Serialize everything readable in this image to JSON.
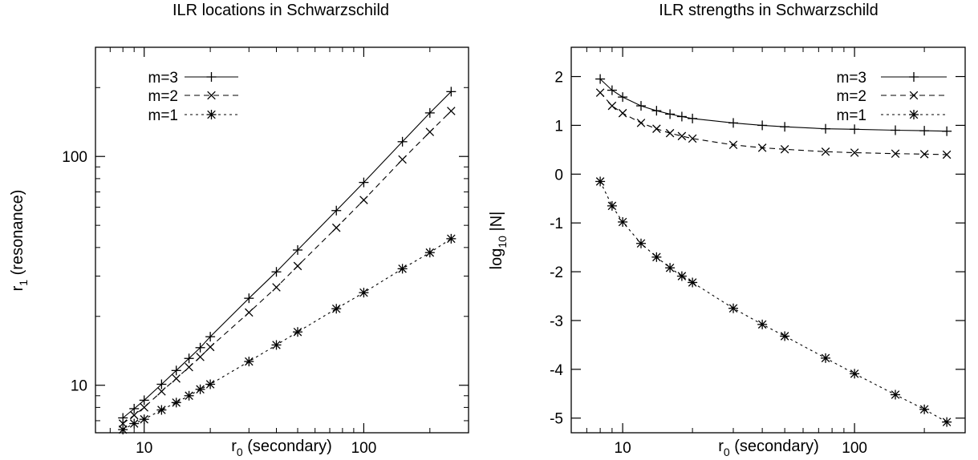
{
  "chart_data": [
    {
      "type": "line",
      "title": "ILR locations in Schwarzschild",
      "xlabel": {
        "main": "r",
        "sub": "0",
        "rest": " (secondary)"
      },
      "ylabel": {
        "main": "r",
        "sub": "1",
        "rest": " (resonance)"
      },
      "xscale": "log",
      "yscale": "log",
      "xlim": [
        6,
        300
      ],
      "ylim": [
        6.2,
        300
      ],
      "xticks": [
        {
          "v": 10,
          "label": "10"
        },
        {
          "v": 100,
          "label": "100"
        }
      ],
      "yticks": [
        {
          "v": 10,
          "label": "10"
        },
        {
          "v": 100,
          "label": "100"
        }
      ],
      "legend_position": "top-left",
      "series": [
        {
          "name": "m=3",
          "dash": "solid",
          "marker": "plus",
          "x": [
            8,
            9,
            10,
            12,
            14,
            16,
            18,
            20,
            30,
            40,
            50,
            75,
            100,
            150,
            200,
            250
          ],
          "y": [
            7.2,
            7.9,
            8.6,
            10.1,
            11.6,
            13.1,
            14.6,
            16.3,
            24,
            31.3,
            39,
            58,
            77,
            116,
            155,
            192
          ]
        },
        {
          "name": "m=2",
          "dash": "dashed",
          "marker": "cross",
          "x": [
            8,
            9,
            10,
            12,
            14,
            16,
            18,
            20,
            30,
            40,
            50,
            75,
            100,
            150,
            200,
            250
          ],
          "y": [
            6.8,
            7.4,
            8.0,
            9.4,
            10.7,
            12.0,
            13.3,
            14.7,
            20.8,
            26.8,
            33.2,
            48.8,
            64.5,
            97,
            128,
            158
          ]
        },
        {
          "name": "m=1",
          "dash": "dotted",
          "marker": "star",
          "x": [
            8,
            9,
            10,
            12,
            14,
            16,
            18,
            20,
            30,
            40,
            50,
            75,
            100,
            150,
            200,
            250
          ],
          "y": [
            6.4,
            6.8,
            7.1,
            7.8,
            8.4,
            9.0,
            9.6,
            10.1,
            12.7,
            15.0,
            17.1,
            21.6,
            25.4,
            32.3,
            38,
            43.7
          ]
        }
      ]
    },
    {
      "type": "line",
      "title": "ILR strengths in Schwarzschild",
      "xlabel": {
        "main": "r",
        "sub": "0",
        "rest": " (secondary)"
      },
      "ylabel": {
        "main": "log",
        "sub": "10",
        "rest": " |N|"
      },
      "xscale": "log",
      "yscale": "linear",
      "xlim": [
        6,
        300
      ],
      "ylim": [
        -5.3,
        2.6
      ],
      "xticks": [
        {
          "v": 10,
          "label": "10"
        },
        {
          "v": 100,
          "label": "100"
        }
      ],
      "yticks": [
        {
          "v": 2,
          "label": "2"
        },
        {
          "v": 1,
          "label": "1"
        },
        {
          "v": 0,
          "label": "0"
        },
        {
          "v": -1,
          "label": "-1"
        },
        {
          "v": -2,
          "label": "-2"
        },
        {
          "v": -3,
          "label": "-3"
        },
        {
          "v": -4,
          "label": "-4"
        },
        {
          "v": -5,
          "label": "-5"
        }
      ],
      "legend_position": "top-right",
      "series": [
        {
          "name": "m=3",
          "dash": "solid",
          "marker": "plus",
          "x": [
            8,
            9,
            10,
            12,
            14,
            16,
            18,
            20,
            30,
            40,
            50,
            75,
            100,
            150,
            200,
            250
          ],
          "y": [
            1.95,
            1.72,
            1.58,
            1.4,
            1.3,
            1.23,
            1.18,
            1.14,
            1.05,
            1.0,
            0.97,
            0.93,
            0.92,
            0.9,
            0.89,
            0.88
          ]
        },
        {
          "name": "m=2",
          "dash": "dashed",
          "marker": "cross",
          "x": [
            8,
            9,
            10,
            12,
            14,
            16,
            18,
            20,
            30,
            40,
            50,
            75,
            100,
            150,
            200,
            250
          ],
          "y": [
            1.67,
            1.4,
            1.25,
            1.05,
            0.93,
            0.84,
            0.78,
            0.73,
            0.6,
            0.54,
            0.51,
            0.46,
            0.44,
            0.42,
            0.41,
            0.4
          ]
        },
        {
          "name": "m=1",
          "dash": "dotted",
          "marker": "star",
          "x": [
            8,
            9,
            10,
            12,
            14,
            16,
            18,
            20,
            30,
            40,
            50,
            75,
            100,
            150,
            200,
            250
          ],
          "y": [
            -0.15,
            -0.65,
            -0.98,
            -1.42,
            -1.7,
            -1.92,
            -2.09,
            -2.22,
            -2.75,
            -3.08,
            -3.32,
            -3.77,
            -4.09,
            -4.52,
            -4.82,
            -5.08
          ]
        }
      ]
    }
  ]
}
